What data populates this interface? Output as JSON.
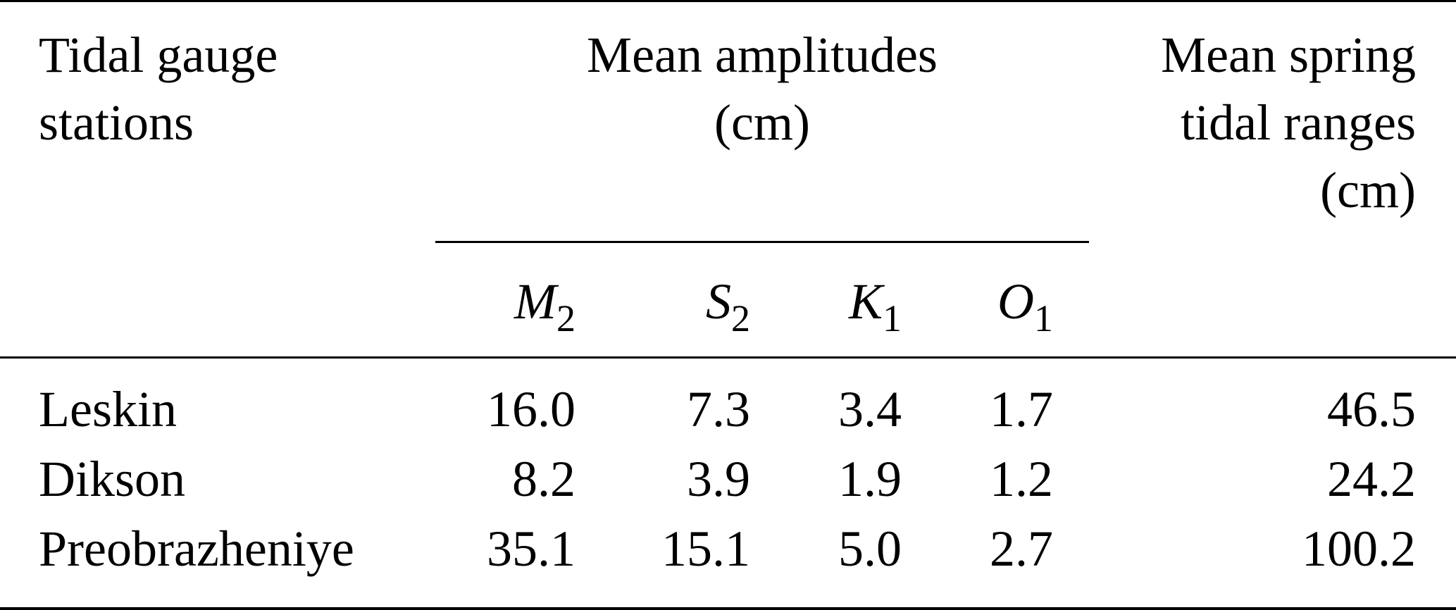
{
  "header": {
    "station_line1": "Tidal gauge",
    "station_line2": "stations",
    "amplitudes_line1": "Mean amplitudes",
    "amplitudes_line2": "(cm)",
    "range_line1": "Mean spring",
    "range_line2": "tidal ranges",
    "range_line3": "(cm)"
  },
  "subheaders": [
    {
      "base": "M",
      "sub": "2"
    },
    {
      "base": "S",
      "sub": "2"
    },
    {
      "base": "K",
      "sub": "1"
    },
    {
      "base": "O",
      "sub": "1"
    }
  ],
  "rows": [
    {
      "station": "Leskin",
      "m2": "16.0",
      "s2": "7.3",
      "k1": "3.4",
      "o1": "1.7",
      "range": "46.5"
    },
    {
      "station": "Dikson",
      "m2": "8.2",
      "s2": "3.9",
      "k1": "1.9",
      "o1": "1.2",
      "range": "24.2"
    },
    {
      "station": "Preobrazheniye",
      "m2": "35.1",
      "s2": "15.1",
      "k1": "5.0",
      "o1": "2.7",
      "range": "100.2"
    }
  ]
}
